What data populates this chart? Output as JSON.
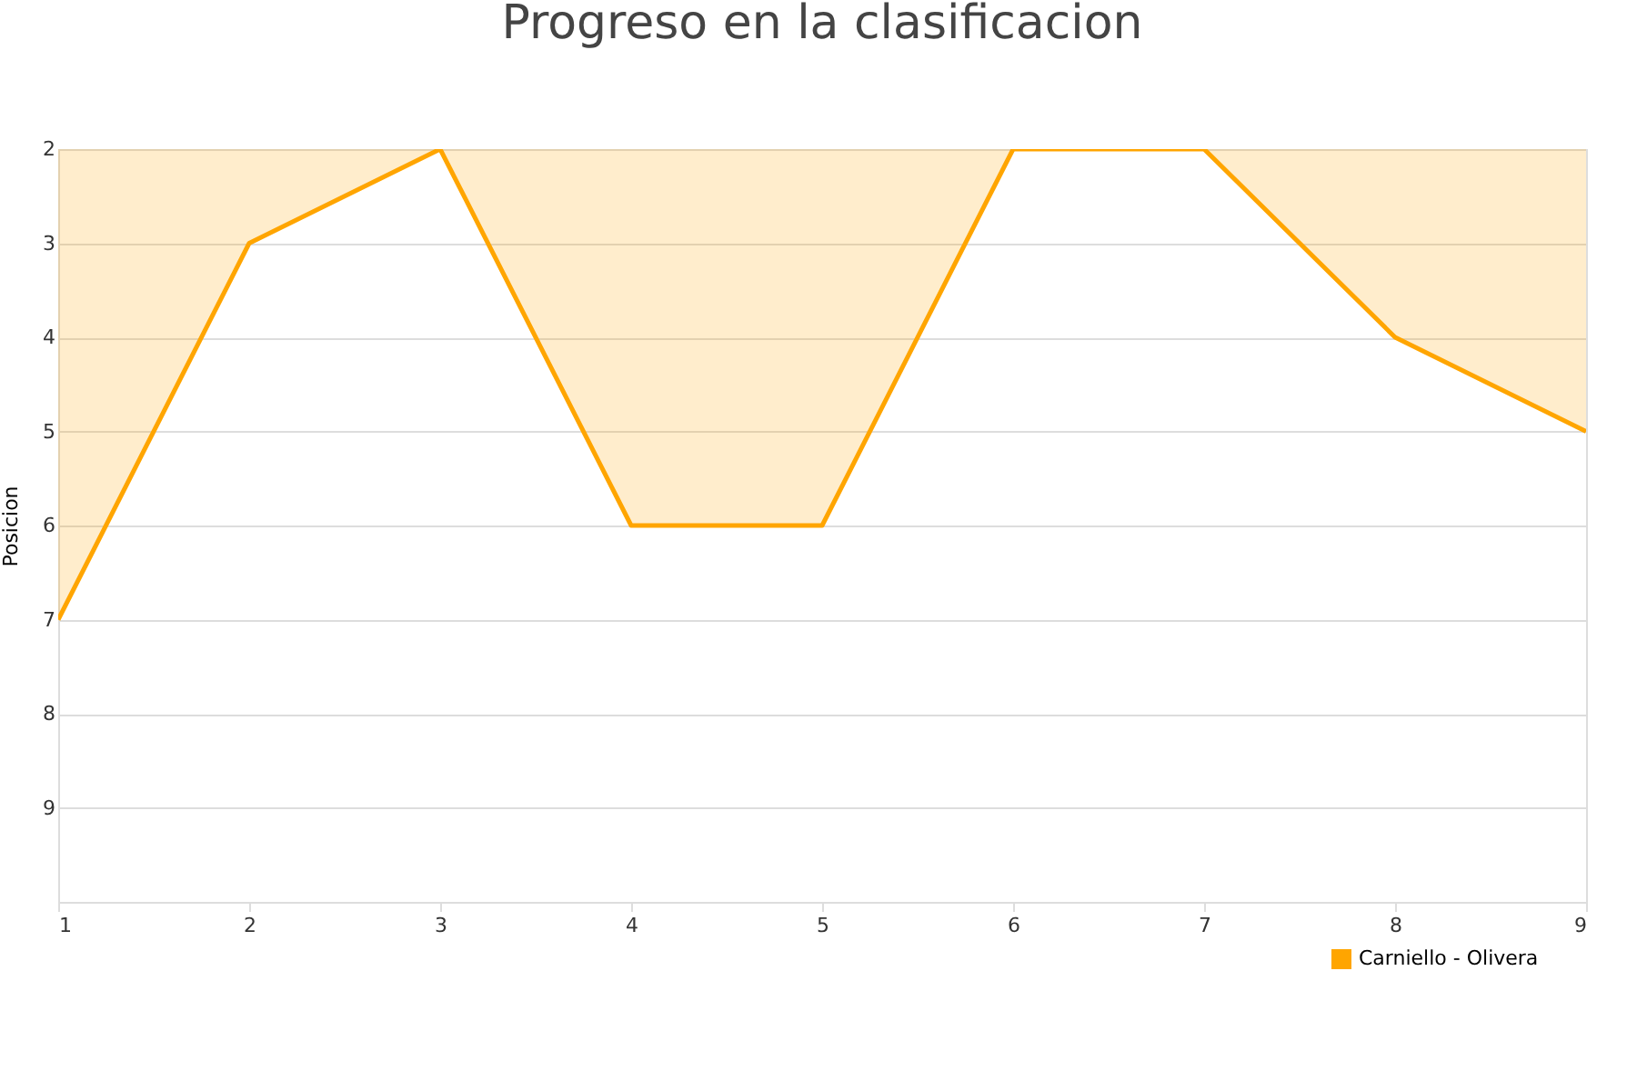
{
  "chart_data": {
    "type": "area",
    "title": "Progreso en la clasificacion",
    "ylabel": "Posicion",
    "x": [
      1,
      2,
      3,
      4,
      5,
      6,
      7,
      8,
      9
    ],
    "series": [
      {
        "name": "Carniello - Olivera",
        "color": "#ffa500",
        "values": [
          7,
          3,
          2,
          6,
          6,
          2,
          2,
          4,
          5
        ]
      }
    ],
    "xlim": [
      1,
      9
    ],
    "xticks": [
      1,
      2,
      3,
      4,
      5,
      6,
      7,
      8,
      9
    ],
    "ylim": [
      10,
      2
    ],
    "yticks": [
      2,
      3,
      4,
      5,
      6,
      7,
      8,
      9
    ],
    "grid": "y",
    "legend": "bottom right"
  }
}
